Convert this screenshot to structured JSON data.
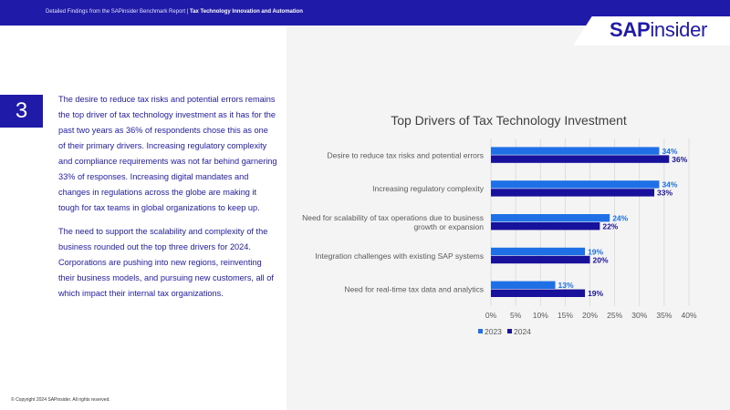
{
  "header": {
    "breadcrumb_prefix": "Detailed Findings from the SAPinsider Benchmark Report | ",
    "breadcrumb_topic": "Tax Technology Innovation and Automation"
  },
  "logo": {
    "part1": "SAP",
    "part2": "insider"
  },
  "section_number": "3",
  "paragraphs": [
    "The desire to reduce tax risks and potential errors remains the top driver of tax technology investment as it has for the past two years as 36% of respondents chose this as one of their primary drivers. Increasing regulatory complexity and compliance requirements was not far behind garnering 33% of responses. Increasing digital mandates and changes in regulations across the globe are making it tough for tax teams in global organizations to keep up.",
    "The need to support the scalability and complexity of the business rounded out the top three drivers for 2024. Corporations are pushing into new regions, reinventing their business models, and pursuing new customers, all of which impact their internal tax organizations."
  ],
  "copyright": "© Copyright 2024 SAPinsider. All rights reserved.",
  "colors": {
    "brand": "#1f1aa8",
    "series_2023": "#1f6fe6",
    "series_2024": "#18119c"
  },
  "chart_data": {
    "type": "bar",
    "orientation": "horizontal",
    "title": "Top Drivers of Tax Technology Investment",
    "categories": [
      [
        "Desire to reduce tax risks and potential errors"
      ],
      [
        "Increasing regulatory complexity"
      ],
      [
        "Need for scalability of tax operations due to business",
        "growth or expansion"
      ],
      [
        "Integration challenges with existing SAP systems"
      ],
      [
        "Need for real-time tax data and analytics"
      ]
    ],
    "series": [
      {
        "name": "2023",
        "color": "#1f6fe6",
        "values": [
          34,
          34,
          24,
          19,
          13
        ],
        "labels": [
          "34%",
          "34%",
          "24%",
          "19%",
          "13%"
        ]
      },
      {
        "name": "2024",
        "color": "#18119c",
        "values": [
          36,
          33,
          22,
          20,
          19
        ],
        "labels": [
          "36%",
          "33%",
          "22%",
          "20%",
          "19%"
        ]
      }
    ],
    "xlim": [
      0,
      40
    ],
    "xticks": [
      0,
      5,
      10,
      15,
      20,
      25,
      30,
      35,
      40
    ],
    "xtick_labels": [
      "0%",
      "5%",
      "10%",
      "15%",
      "20%",
      "25%",
      "30%",
      "35%",
      "40%"
    ],
    "grid": true,
    "legend_position": "bottom-left"
  }
}
